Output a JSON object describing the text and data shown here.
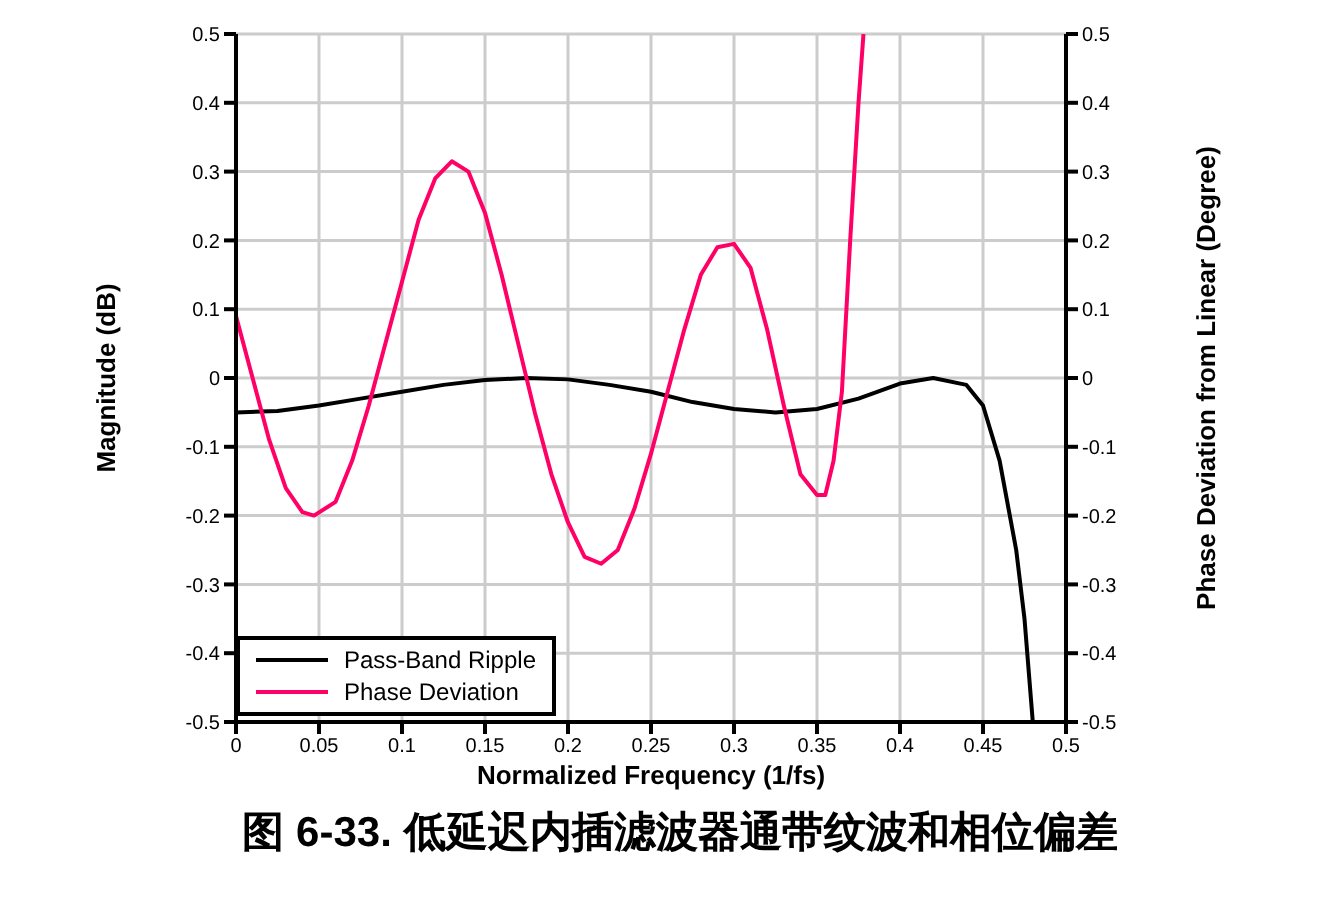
{
  "chart_data": {
    "type": "line",
    "title": "图 6-33. 低延迟内插滤波器通带纹波和相位偏差",
    "xlabel": "Normalized Frequency (1/fs)",
    "ylabel": "Magnitude (dB)",
    "y2label": "Phase Deviation from Linear (Degree)",
    "xlim": [
      0,
      0.5
    ],
    "xticks": [
      0,
      0.05,
      0.1,
      0.15,
      0.2,
      0.25,
      0.3,
      0.35,
      0.4,
      0.45,
      0.5
    ],
    "ylim": [
      -0.5,
      0.5
    ],
    "yticks": [
      -0.5,
      -0.4,
      -0.3,
      -0.2,
      -0.1,
      0,
      0.1,
      0.2,
      0.3,
      0.4,
      0.5
    ],
    "y2lim": [
      -0.5,
      0.5
    ],
    "y2ticks": [
      -0.5,
      -0.4,
      -0.3,
      -0.2,
      -0.1,
      0,
      0.1,
      0.2,
      0.3,
      0.4,
      0.5
    ],
    "grid": true,
    "legend": "bottom left",
    "line_style": "solid",
    "marker": "none",
    "series": [
      {
        "name": "Pass-Band Ripple",
        "color": "#000000",
        "x": [
          0,
          0.025,
          0.05,
          0.075,
          0.1,
          0.125,
          0.15,
          0.175,
          0.2,
          0.225,
          0.25,
          0.275,
          0.3,
          0.325,
          0.35,
          0.375,
          0.4,
          0.42,
          0.44,
          0.45,
          0.46,
          0.47,
          0.475,
          0.48
        ],
        "values": [
          -0.05,
          -0.048,
          -0.04,
          -0.03,
          -0.02,
          -0.01,
          -0.003,
          0,
          -0.002,
          -0.01,
          -0.02,
          -0.035,
          -0.045,
          -0.05,
          -0.045,
          -0.03,
          -0.008,
          0,
          -0.01,
          -0.04,
          -0.12,
          -0.25,
          -0.35,
          -0.5
        ]
      },
      {
        "name": "Phase Deviation",
        "color": "#ff0066",
        "axis": "y2",
        "x": [
          0,
          0.01,
          0.02,
          0.03,
          0.04,
          0.047,
          0.06,
          0.07,
          0.08,
          0.09,
          0.1,
          0.11,
          0.12,
          0.13,
          0.14,
          0.15,
          0.16,
          0.17,
          0.18,
          0.19,
          0.2,
          0.21,
          0.22,
          0.23,
          0.24,
          0.25,
          0.26,
          0.27,
          0.28,
          0.29,
          0.3,
          0.31,
          0.32,
          0.33,
          0.34,
          0.35,
          0.355,
          0.36,
          0.365,
          0.37,
          0.375,
          0.378
        ],
        "values": [
          0.09,
          0.0,
          -0.09,
          -0.16,
          -0.195,
          -0.2,
          -0.18,
          -0.12,
          -0.04,
          0.05,
          0.14,
          0.23,
          0.29,
          0.315,
          0.3,
          0.24,
          0.15,
          0.05,
          -0.05,
          -0.14,
          -0.21,
          -0.26,
          -0.27,
          -0.25,
          -0.19,
          -0.11,
          -0.02,
          0.07,
          0.15,
          0.19,
          0.195,
          0.16,
          0.07,
          -0.04,
          -0.14,
          -0.17,
          -0.17,
          -0.12,
          -0.02,
          0.2,
          0.4,
          0.5
        ]
      }
    ]
  }
}
